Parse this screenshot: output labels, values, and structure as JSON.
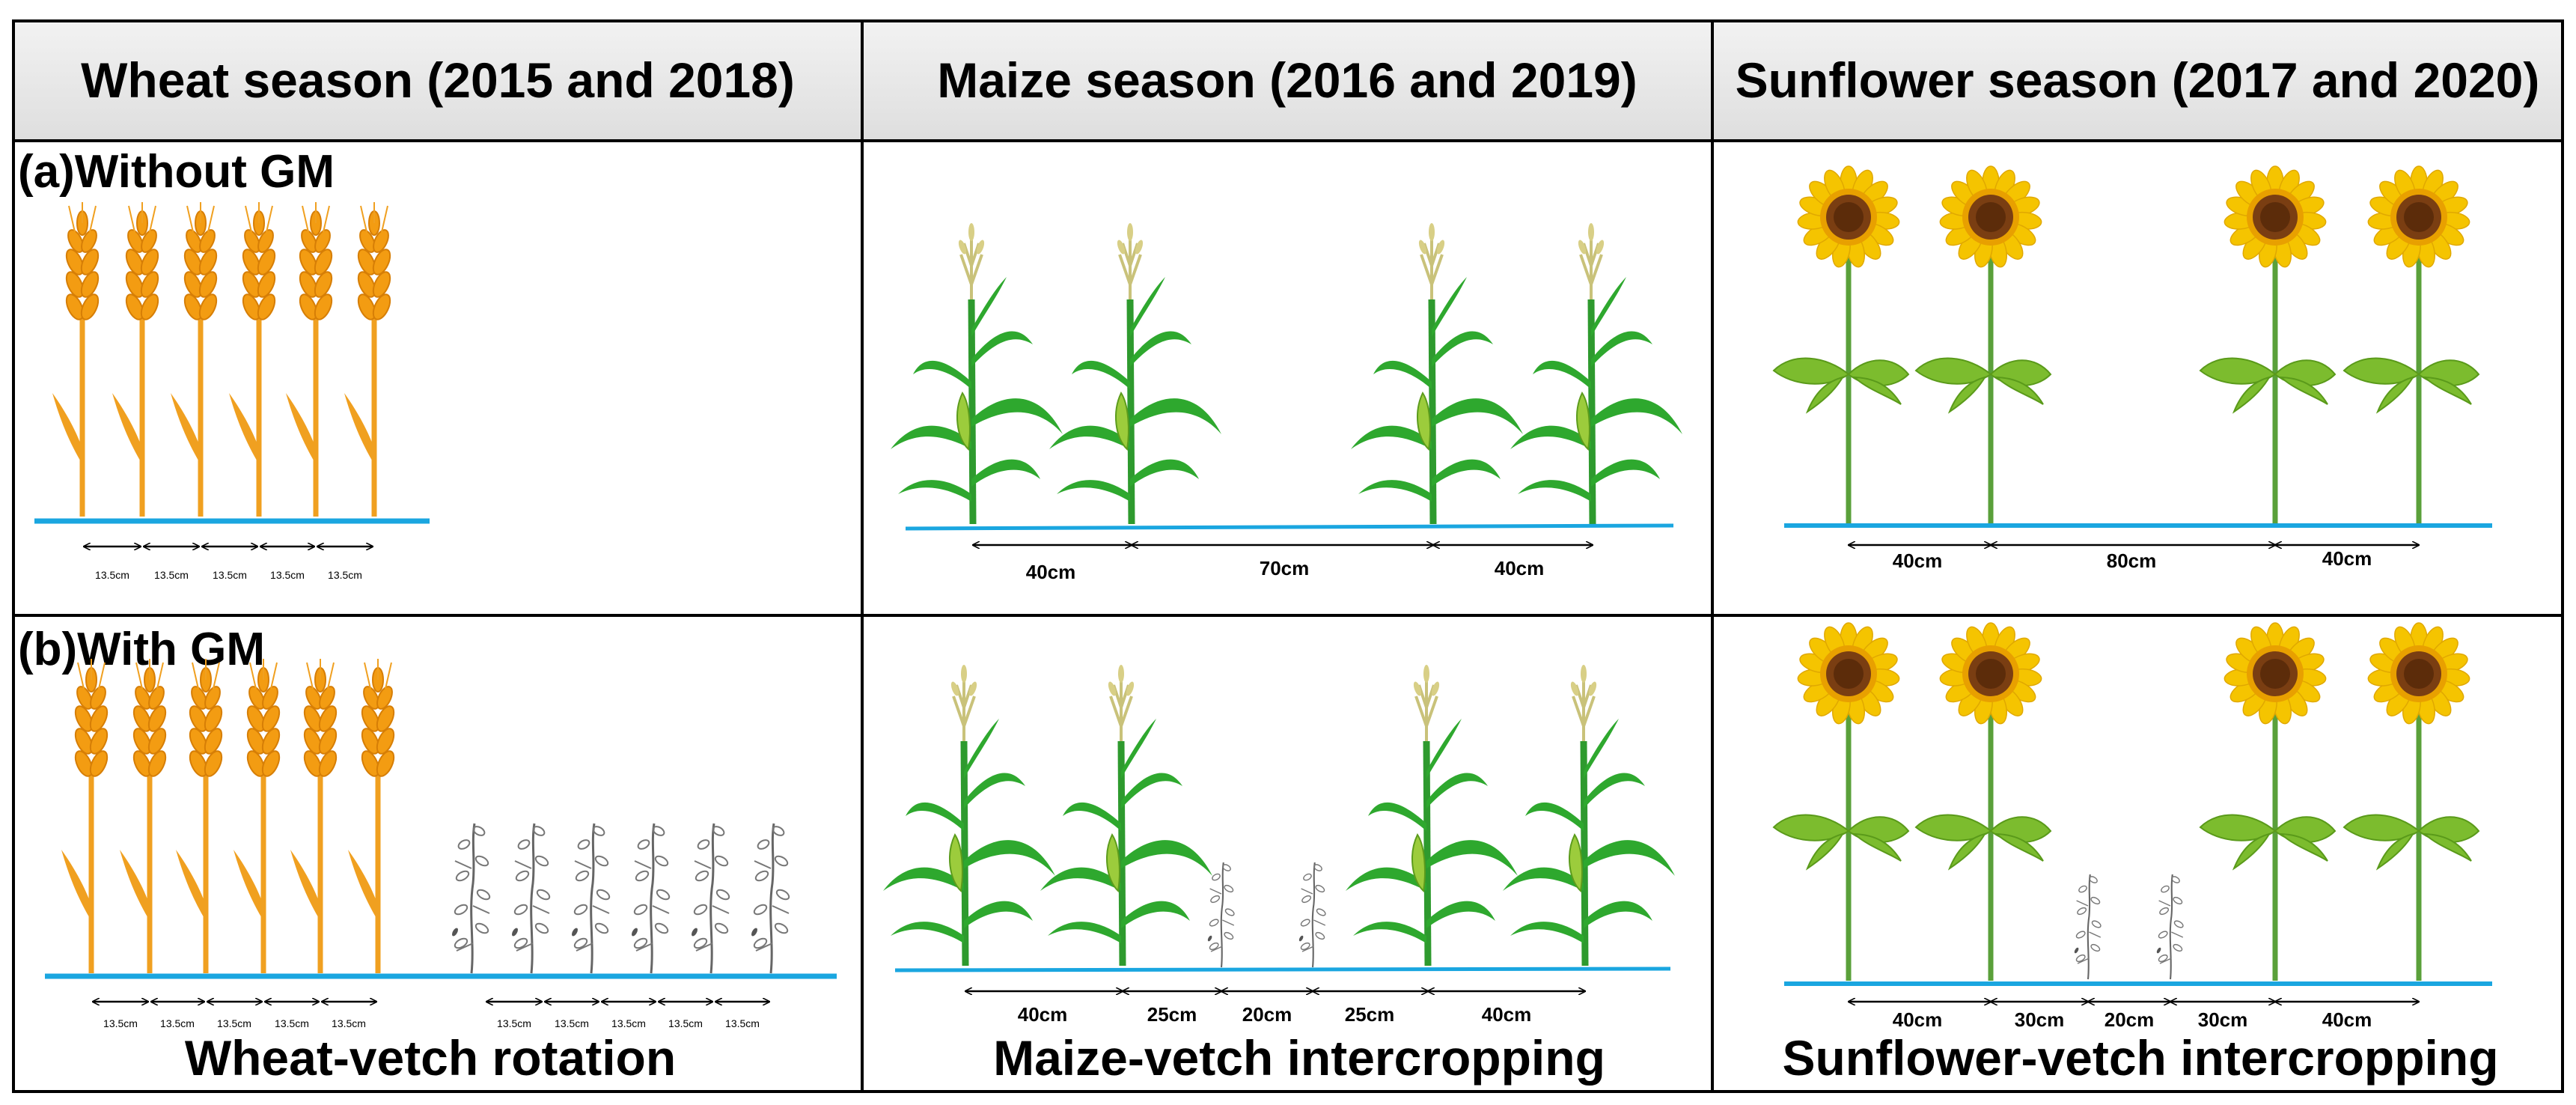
{
  "headers": {
    "wheat": "Wheat season (2015 and 2018)",
    "maize": "Maize season (2016 and 2019)",
    "sunflower": "Sunflower season (2017 and 2020)"
  },
  "rows": {
    "a": "(a)Without GM",
    "b": "(b)With GM"
  },
  "captions": {
    "wheat": "Wheat-vetch rotation",
    "maize": "Maize-vetch intercropping",
    "sunflower": "Sunflower-vetch intercropping"
  },
  "spacings": {
    "wheat": "13.5cm",
    "maize_a": [
      "40cm",
      "70cm",
      "40cm"
    ],
    "maize_b": [
      "40cm",
      "25cm",
      "20cm",
      "25cm",
      "40cm"
    ],
    "sunflower_a": [
      "40cm",
      "80cm",
      "40cm"
    ],
    "sunflower_b": [
      "40cm",
      "30cm",
      "20cm",
      "30cm",
      "40cm"
    ]
  },
  "colors": {
    "ground": "#1aa6e0",
    "wheat": "#f0a020",
    "maize_leaf": "#2ea82e",
    "petal": "#f5c400",
    "center": "#7a3e12",
    "sun_leaf": "#7cbc2e",
    "vetch": "#888888"
  }
}
